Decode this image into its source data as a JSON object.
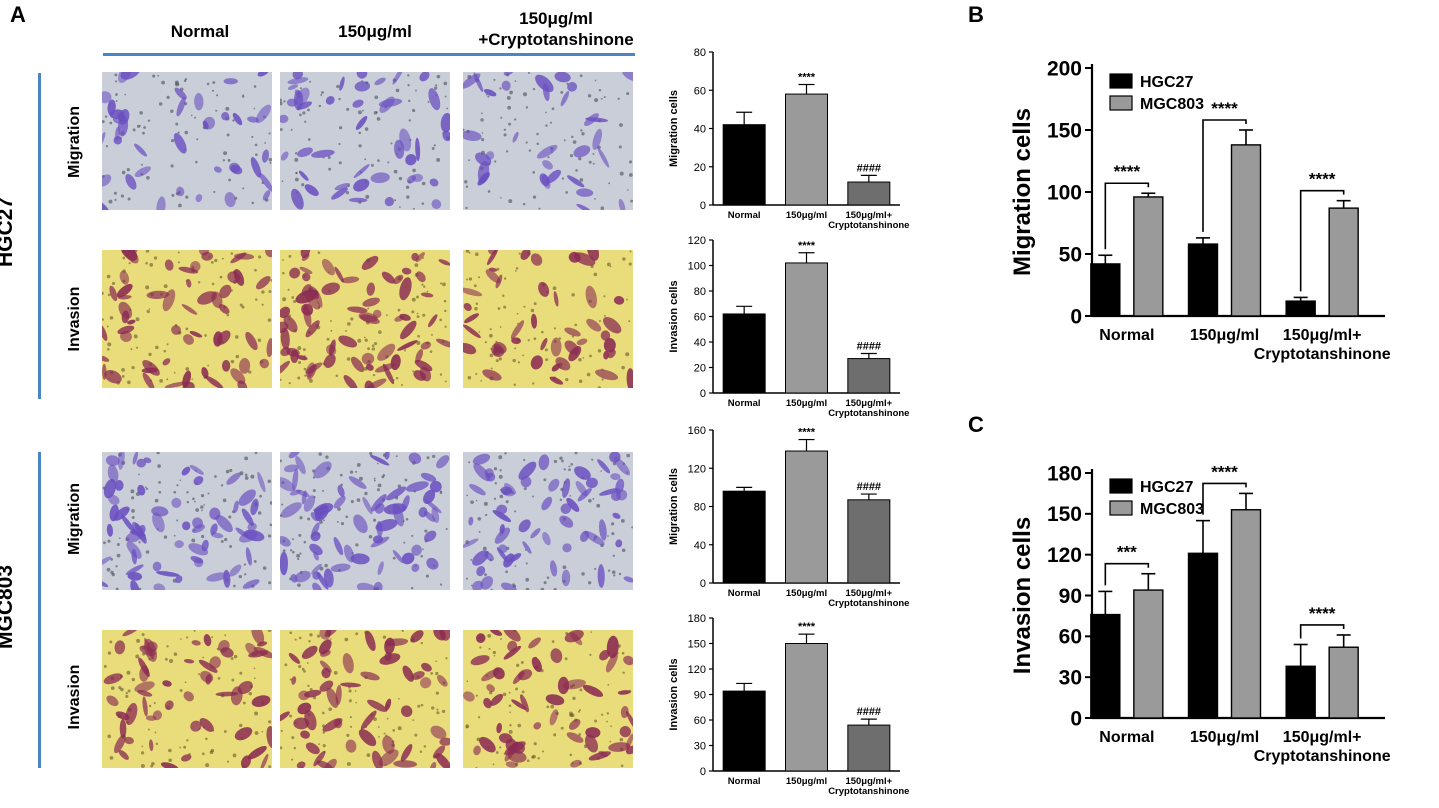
{
  "panels": {
    "a": "A",
    "b": "B",
    "c": "C"
  },
  "column_headers": [
    "Normal",
    "150μg/ml",
    "150μg/ml\n+Cryptotanshinone"
  ],
  "cell_lines": [
    "HGC27",
    "MGC803"
  ],
  "assays": [
    "Migration",
    "Invasion"
  ],
  "images": [
    {
      "label": "hgc27-migration",
      "style": "migration",
      "density": [
        0.28,
        0.34,
        0.16
      ]
    },
    {
      "label": "hgc27-invasion",
      "style": "invasion",
      "density": [
        0.52,
        0.72,
        0.34
      ]
    },
    {
      "label": "mgc803-migration",
      "style": "migration",
      "density": [
        0.62,
        0.7,
        0.55
      ]
    },
    {
      "label": "mgc803-invasion",
      "style": "invasion",
      "density": [
        0.45,
        0.55,
        0.5
      ]
    }
  ],
  "colors": {
    "black": "#000000",
    "gray": "#9a9a9a",
    "darkgray": "#6e6e6e",
    "accent_line": "#4a86c6",
    "migration_bg": "#c9ced8",
    "migration_cell": "#6a4fc0",
    "invasion_bg": "#e9dc7a",
    "invasion_cell": "#8a2a52"
  },
  "chart_data": [
    {
      "id": "a1",
      "type": "bar",
      "panel": "A",
      "title": "",
      "xlabel": "",
      "ylabel": "Migration cells",
      "categories": [
        "Normal",
        "150μg/ml",
        "150μg/ml+\nCryptotanshinone"
      ],
      "values": [
        42,
        58,
        12
      ],
      "errors": [
        6.5,
        5,
        3.5
      ],
      "bar_colors": [
        "#000000",
        "#9a9a9a",
        "#6e6e6e"
      ],
      "annotations": [
        "",
        "****",
        "####"
      ],
      "ylim": [
        0,
        80
      ],
      "yticks": [
        0,
        20,
        40,
        60,
        80
      ]
    },
    {
      "id": "a2",
      "type": "bar",
      "panel": "A",
      "title": "",
      "xlabel": "",
      "ylabel": "Invasion cells",
      "categories": [
        "Normal",
        "150μg/ml",
        "150μg/ml+\nCryptotanshinone"
      ],
      "values": [
        62,
        102,
        27
      ],
      "errors": [
        6,
        8,
        4
      ],
      "bar_colors": [
        "#000000",
        "#9a9a9a",
        "#6e6e6e"
      ],
      "annotations": [
        "",
        "****",
        "####"
      ],
      "ylim": [
        0,
        120
      ],
      "yticks": [
        0,
        20,
        40,
        60,
        80,
        100,
        120
      ]
    },
    {
      "id": "a3",
      "type": "bar",
      "panel": "A",
      "title": "",
      "xlabel": "",
      "ylabel": "Migration cells",
      "categories": [
        "Normal",
        "150μg/ml",
        "150μg/ml+\nCryptotanshinone"
      ],
      "values": [
        96,
        138,
        87
      ],
      "errors": [
        4,
        12,
        6
      ],
      "bar_colors": [
        "#000000",
        "#9a9a9a",
        "#6e6e6e"
      ],
      "annotations": [
        "",
        "****",
        "####"
      ],
      "ylim": [
        0,
        160
      ],
      "yticks": [
        0,
        40,
        80,
        120,
        160
      ]
    },
    {
      "id": "a4",
      "type": "bar",
      "panel": "A",
      "title": "",
      "xlabel": "",
      "ylabel": "Invasion cells",
      "categories": [
        "Normal",
        "150μg/ml",
        "150μg/ml+\nCryptotanshinone"
      ],
      "values": [
        94,
        150,
        54
      ],
      "errors": [
        9,
        11,
        7
      ],
      "bar_colors": [
        "#000000",
        "#9a9a9a",
        "#6e6e6e"
      ],
      "annotations": [
        "",
        "****",
        "####"
      ],
      "ylim": [
        0,
        180
      ],
      "yticks": [
        0,
        30,
        60,
        90,
        120,
        150,
        180
      ]
    },
    {
      "id": "b",
      "type": "bar",
      "panel": "B",
      "title": "",
      "xlabel": "",
      "ylabel": "Migration cells",
      "categories": [
        "Normal",
        "150μg/ml",
        "150μg/ml+\nCryptotanshinone"
      ],
      "series": [
        {
          "name": "HGC27",
          "values": [
            42,
            58,
            12
          ],
          "errors": [
            7,
            5,
            3
          ],
          "color": "#000000"
        },
        {
          "name": "MGC803",
          "values": [
            96,
            138,
            87
          ],
          "errors": [
            3,
            12,
            6
          ],
          "color": "#9a9a9a"
        }
      ],
      "significance": [
        "****",
        "****",
        "****"
      ],
      "legend": "top-left",
      "ylim": [
        0,
        200
      ],
      "yticks": [
        0,
        50,
        100,
        150,
        200
      ]
    },
    {
      "id": "c",
      "type": "bar",
      "panel": "C",
      "title": "",
      "xlabel": "",
      "ylabel": "Invasion cells",
      "categories": [
        "Normal",
        "150μg/ml",
        "150μg/ml+\nCryptotanshinone"
      ],
      "series": [
        {
          "name": "HGC27",
          "values": [
            76,
            121,
            38
          ],
          "errors": [
            17,
            24,
            16
          ],
          "color": "#000000"
        },
        {
          "name": "MGC803",
          "values": [
            94,
            153,
            52
          ],
          "errors": [
            12,
            12,
            9
          ],
          "color": "#9a9a9a"
        }
      ],
      "significance": [
        "***",
        "****",
        "****"
      ],
      "legend": "top-left",
      "ylim": [
        0,
        180
      ],
      "yticks": [
        0,
        30,
        60,
        90,
        120,
        150,
        180
      ]
    }
  ]
}
